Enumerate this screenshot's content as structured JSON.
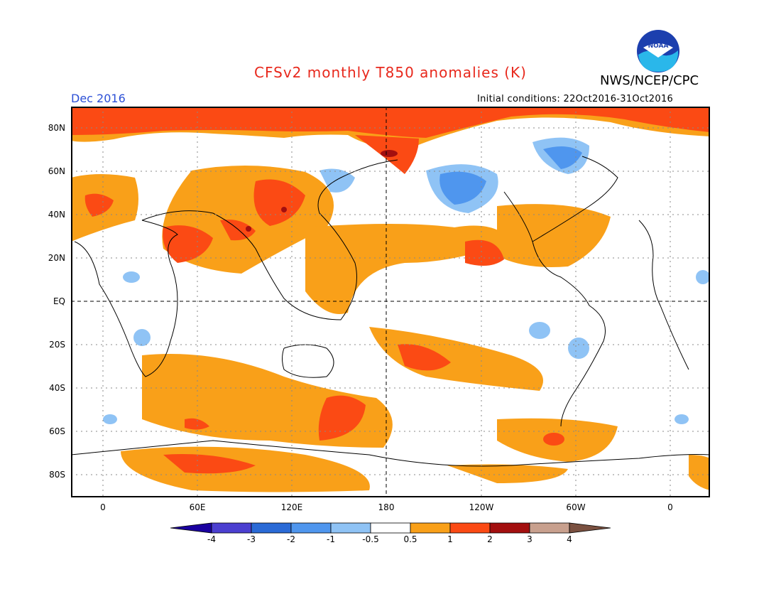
{
  "title": "CFSv2 monthly T850 anomalies (K)",
  "agency": "NWS/NCEP/CPC",
  "logo_text": "NOAA",
  "valid_month": "Dec 2016",
  "initial_conditions": "Initial conditions: 22Oct2016-31Oct2016",
  "lat_labels": [
    "80N",
    "60N",
    "40N",
    "20N",
    "EQ",
    "20S",
    "40S",
    "60S",
    "80S"
  ],
  "lon_labels": [
    "0",
    "60E",
    "120E",
    "180",
    "120W",
    "60W",
    "0"
  ],
  "colorbar": {
    "labels": [
      "-4",
      "-3",
      "-2",
      "-1",
      "-0.5",
      "0.5",
      "1",
      "2",
      "3",
      "4"
    ],
    "colors": [
      "#1a00a0",
      "#4b3fd0",
      "#2a6ad6",
      "#4f96ee",
      "#8fc3f5",
      "#ffffff",
      "#f9a019",
      "#fb4a14",
      "#a30f0f",
      "#c8a08e",
      "#7a5040"
    ]
  },
  "anomaly_colors": {
    "warm1": "#f9a019",
    "warm2": "#fb4a14",
    "warm3": "#a30f0f",
    "cool1": "#8fc3f5",
    "cool2": "#4f96ee",
    "cool3": "#2a6ad6"
  }
}
